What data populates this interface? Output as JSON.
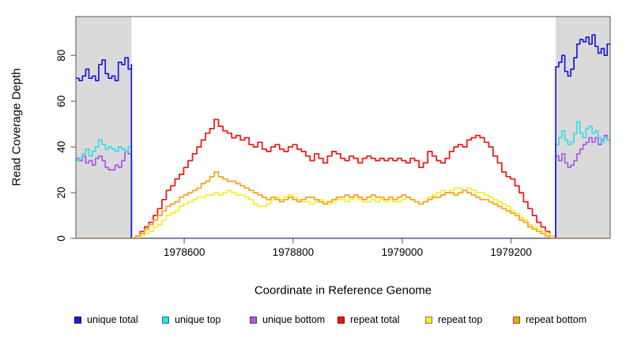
{
  "chart_data": {
    "type": "line",
    "line_style": "step",
    "title": "",
    "xlabel": "Coordinate in Reference Genome",
    "ylabel": "Read Coverage Depth",
    "xlim": [
      1978401,
      1979382
    ],
    "ylim": [
      0,
      97
    ],
    "x_ticks": [
      1978600,
      1978800,
      1979000,
      1979200
    ],
    "y_ticks": [
      0,
      20,
      40,
      60,
      80
    ],
    "grid": false,
    "legend_position": "bottom",
    "axis_color": "#6e6e6e",
    "text_color": "#000000",
    "shaded_regions": [
      {
        "x0": 1978401,
        "x1": 1978503,
        "color": "#dadada"
      },
      {
        "x0": 1979282,
        "x1": 1979382,
        "color": "#dadada"
      }
    ],
    "draw_order": [
      2,
      1,
      0,
      3,
      4,
      5
    ],
    "series": [
      {
        "name": "unique total",
        "color": "#1b1bd8",
        "segments": [
          {
            "x0": 1978401,
            "dx": 6,
            "y": [
              70,
              69,
              71,
              74,
              70,
              71,
              69,
              76,
              78,
              72,
              70,
              71,
              69,
              77,
              76,
              79,
              74,
              76
            ]
          },
          {
            "x0": 1978503,
            "dx": 779,
            "y": [
              0,
              0
            ]
          },
          {
            "x0": 1979282,
            "dx": 5.56,
            "y": [
              75,
              77,
              80,
              73,
              71,
              74,
              79,
              85,
              87,
              86,
              88,
              85,
              89,
              84,
              81,
              83,
              80,
              85,
              84
            ]
          }
        ]
      },
      {
        "name": "unique top",
        "color": "#3adce8",
        "segments": [
          {
            "x0": 1978401,
            "dx": 6,
            "y": [
              34,
              35,
              37,
              39,
              36,
              38,
              40,
              43,
              41,
              39,
              40,
              39,
              38,
              40,
              39,
              38,
              40,
              41
            ]
          },
          {
            "x0": 1978503,
            "dx": 779,
            "y": [
              0,
              0
            ]
          },
          {
            "x0": 1979282,
            "dx": 5.56,
            "y": [
              41,
              44,
              47,
              43,
              41,
              42,
              46,
              51,
              46,
              44,
              48,
              49,
              46,
              47,
              44,
              42,
              44,
              43,
              42
            ]
          }
        ]
      },
      {
        "name": "unique bottom",
        "color": "#a45be6",
        "segments": [
          {
            "x0": 1978401,
            "dx": 6,
            "y": [
              35,
              34,
              36,
              33,
              34,
              32,
              35,
              36,
              34,
              31,
              30,
              30,
              32,
              31,
              34,
              38,
              37,
              36
            ]
          },
          {
            "x0": 1978503,
            "dx": 779,
            "y": [
              0,
              0
            ]
          },
          {
            "x0": 1979282,
            "dx": 5.56,
            "y": [
              36,
              34,
              37,
              33,
              31,
              32,
              34,
              37,
              39,
              41,
              42,
              44,
              42,
              44,
              41,
              43,
              45,
              43,
              41
            ]
          }
        ]
      },
      {
        "name": "repeat total",
        "color": "#ee1414",
        "segments": [
          {
            "x0": 1978401,
            "dx": 102,
            "y": [
              0,
              0
            ]
          },
          {
            "x0": 1978503,
            "dx": 8,
            "y": [
              0,
              1,
              3,
              5,
              7,
              10,
              13,
              17,
              21,
              23,
              26,
              28,
              31,
              34,
              37,
              40,
              43,
              46,
              48,
              52,
              49,
              47,
              46,
              44,
              45,
              43,
              44,
              41,
              40,
              42,
              39,
              38,
              40,
              41,
              39,
              38,
              40,
              41,
              39,
              38,
              36,
              34,
              37,
              35,
              33,
              36,
              38,
              37,
              35,
              34,
              36,
              35,
              33,
              35,
              36,
              35,
              34,
              35,
              34,
              35,
              34,
              35,
              34,
              33,
              35,
              34,
              31,
              33,
              38,
              36,
              34,
              33,
              35,
              38,
              40,
              41,
              40,
              43,
              44,
              45,
              44,
              42,
              40,
              36,
              33,
              29,
              27,
              26,
              23,
              20,
              16,
              13,
              10,
              7,
              5,
              3,
              1,
              0
            ]
          },
          {
            "x0": 1979279,
            "dx": 103,
            "y": [
              0,
              0
            ]
          }
        ]
      },
      {
        "name": "repeat top",
        "color": "#f4ee2e",
        "segments": [
          {
            "x0": 1978401,
            "dx": 102,
            "y": [
              0,
              0
            ]
          },
          {
            "x0": 1978503,
            "dx": 8,
            "y": [
              0,
              0,
              1,
              2,
              3,
              5,
              6,
              8,
              10,
              11,
              12,
              14,
              15,
              16,
              17,
              18,
              18,
              19,
              19,
              20,
              19,
              20,
              21,
              20,
              19,
              19,
              18,
              17,
              15,
              14,
              14,
              15,
              17,
              18,
              17,
              18,
              19,
              18,
              17,
              16,
              16,
              15,
              16,
              17,
              16,
              15,
              16,
              17,
              17,
              16,
              17,
              18,
              17,
              16,
              16,
              17,
              16,
              17,
              16,
              17,
              16,
              16,
              17,
              18,
              17,
              16,
              15,
              16,
              18,
              19,
              20,
              21,
              20,
              21,
              22,
              22,
              21,
              22,
              21,
              20,
              20,
              19,
              18,
              17,
              16,
              15,
              14,
              12,
              11,
              9,
              8,
              6,
              5,
              4,
              3,
              2,
              1,
              0
            ]
          },
          {
            "x0": 1979279,
            "dx": 103,
            "y": [
              0,
              0
            ]
          }
        ]
      },
      {
        "name": "repeat bottom",
        "color": "#f7a11c",
        "segments": [
          {
            "x0": 1978401,
            "dx": 102,
            "y": [
              0,
              0
            ]
          },
          {
            "x0": 1978503,
            "dx": 8,
            "y": [
              0,
              1,
              2,
              4,
              6,
              8,
              10,
              12,
              14,
              15,
              16,
              18,
              19,
              20,
              21,
              22,
              24,
              25,
              27,
              29,
              27,
              26,
              25,
              25,
              24,
              23,
              22,
              21,
              20,
              19,
              18,
              17,
              18,
              17,
              16,
              17,
              18,
              17,
              16,
              17,
              18,
              18,
              17,
              16,
              15,
              16,
              17,
              18,
              18,
              19,
              18,
              19,
              18,
              17,
              18,
              19,
              18,
              18,
              17,
              18,
              17,
              18,
              19,
              18,
              17,
              16,
              15,
              16,
              17,
              18,
              18,
              19,
              20,
              20,
              19,
              20,
              21,
              20,
              19,
              18,
              17,
              17,
              16,
              15,
              14,
              13,
              12,
              11,
              10,
              8,
              7,
              5,
              4,
              3,
              2,
              1,
              0,
              0
            ]
          },
          {
            "x0": 1979279,
            "dx": 103,
            "y": [
              0,
              0
            ]
          }
        ]
      }
    ]
  }
}
